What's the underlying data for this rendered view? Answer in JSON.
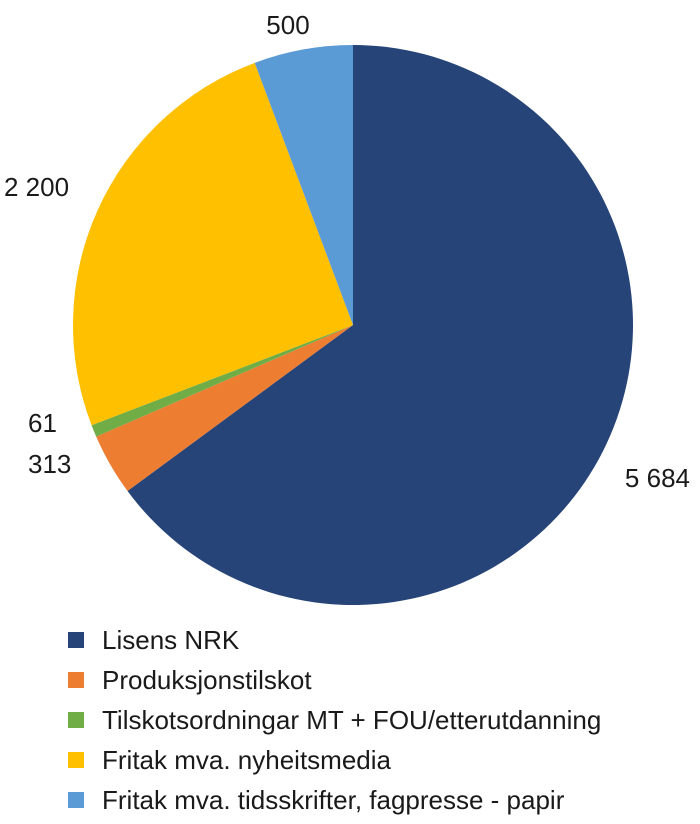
{
  "chart_data": {
    "type": "pie",
    "slices": [
      {
        "label": "Lisens NRK",
        "value": 5684,
        "value_label": "5 684",
        "color": "#264478"
      },
      {
        "label": "Produksjonstilskot",
        "value": 313,
        "value_label": "313",
        "color": "#ED7D31"
      },
      {
        "label": "Tilskotsordningar MT + FOU/etterutdanning",
        "value": 61,
        "value_label": "61",
        "color": "#70AD47"
      },
      {
        "label": "Fritak mva. nyheitsmedia",
        "value": 2200,
        "value_label": "2 200",
        "color": "#FFC000"
      },
      {
        "label": "Fritak mva. tidsskrifter, fagpresse - papir",
        "value": 500,
        "value_label": "500",
        "color": "#5B9BD5"
      }
    ],
    "start_angle": "12 o'clock",
    "direction": "clockwise",
    "legend_position": "bottom"
  }
}
